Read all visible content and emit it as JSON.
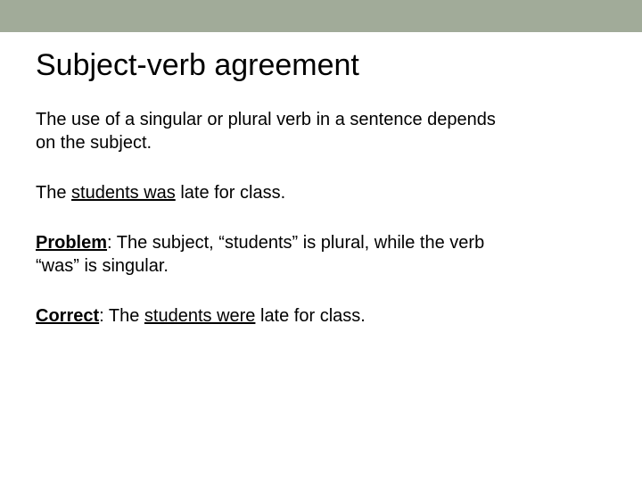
{
  "title": "Subject-verb agreement",
  "intro": {
    "line1": "The use of a singular or plural verb in a sentence depends",
    "line2": "on the subject."
  },
  "example": {
    "prefix": "The ",
    "underlined": "students was",
    "suffix": " late for class."
  },
  "problem": {
    "label": "Problem",
    "line1": ": The subject, “students” is plural, while the verb",
    "line2": "“was” is singular."
  },
  "correct": {
    "label": "Correct",
    "middle": ": The ",
    "underlined": "students were",
    "suffix": " late for class."
  },
  "colors": {
    "top_bar": "#a1ab99",
    "background": "#ffffff",
    "text": "#000000"
  },
  "typography": {
    "title_fontsize": 34,
    "body_fontsize": 20,
    "font_family": "Arial"
  }
}
